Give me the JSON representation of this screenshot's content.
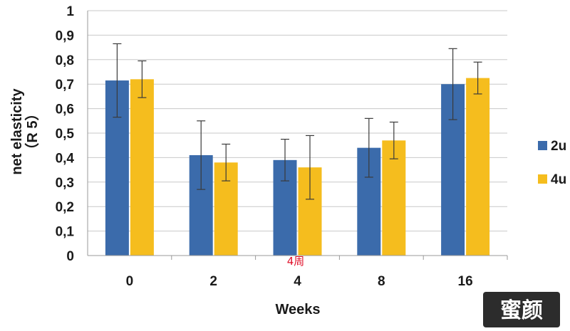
{
  "chart_data": {
    "type": "bar",
    "categories": [
      "0",
      "2",
      "4",
      "8",
      "16"
    ],
    "series": [
      {
        "name": "2u",
        "color": "#3b6bab",
        "values": [
          0.715,
          0.41,
          0.39,
          0.44,
          0.7
        ],
        "errors": [
          0.15,
          0.14,
          0.085,
          0.12,
          0.145
        ]
      },
      {
        "name": "4u",
        "color": "#f5bd1e",
        "values": [
          0.72,
          0.38,
          0.36,
          0.47,
          0.725
        ],
        "errors": [
          0.075,
          0.075,
          0.13,
          0.075,
          0.065
        ]
      }
    ],
    "xlabel": "Weeks",
    "ylabel_line1": "net elasticity",
    "ylabel_line2": "（R 5）",
    "ylim": [
      0,
      1
    ],
    "yticks": [
      "0",
      "0,1",
      "0,2",
      "0,3",
      "0,4",
      "0,5",
      "0,6",
      "0,7",
      "0,8",
      "0,9",
      "1"
    ],
    "grid": true,
    "legend_position": "right",
    "annotation": {
      "text": "4周",
      "color": "#e0102a"
    }
  },
  "watermark": {
    "text": "蜜颜"
  }
}
